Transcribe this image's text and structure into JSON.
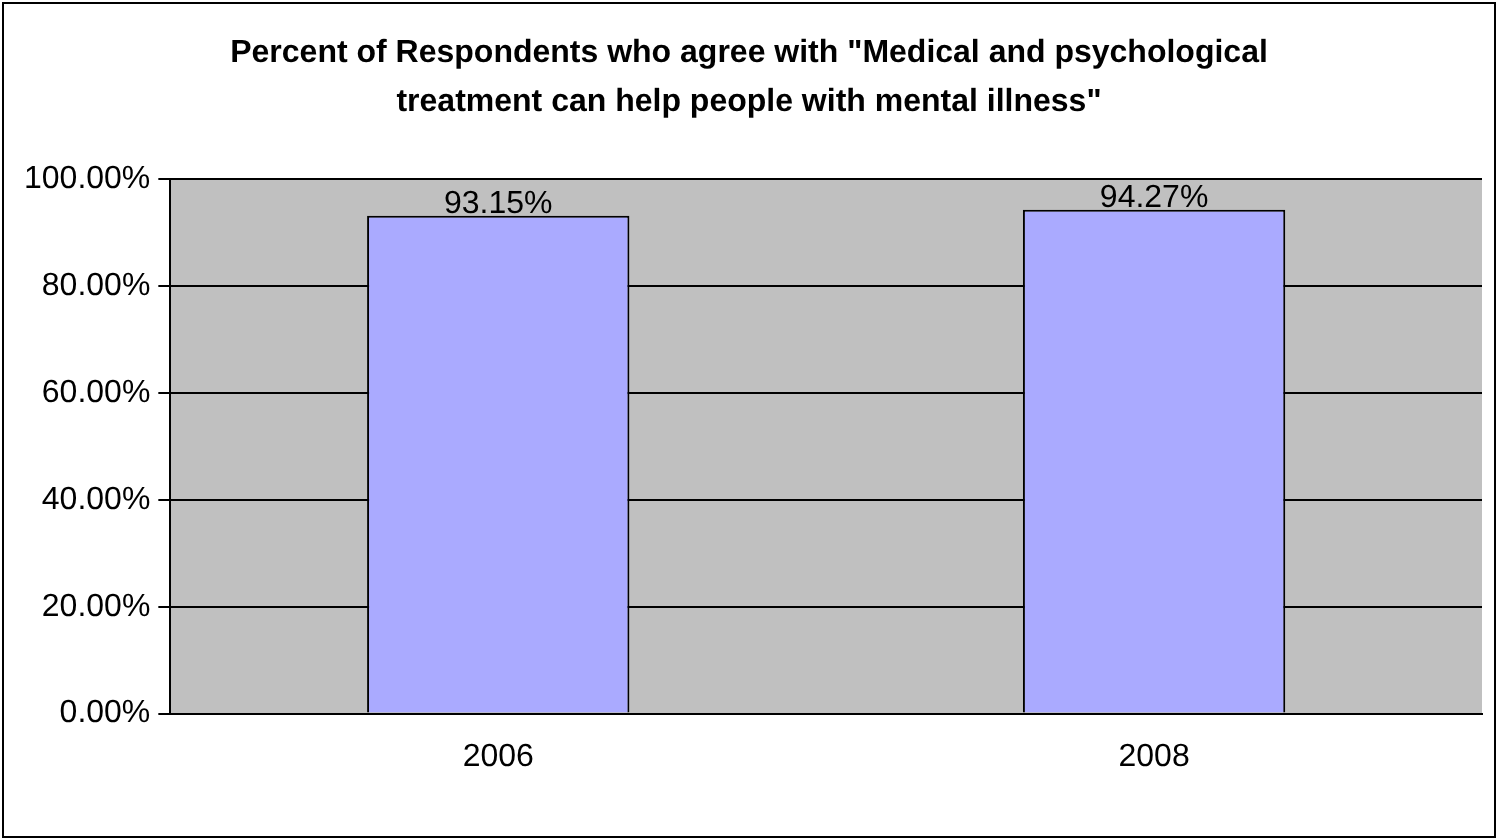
{
  "chart_data": {
    "type": "bar",
    "title": "Percent of Respondents who agree with \"Medical and psychological treatment can help people with mental illness\"",
    "categories": [
      "2006",
      "2008"
    ],
    "values": [
      93.15,
      94.27
    ],
    "value_labels": [
      "93.15%",
      "94.27%"
    ],
    "color": "#aaaaff",
    "ylim": [
      0,
      100
    ],
    "yticks": [
      {
        "value": 0,
        "label": "0.00%"
      },
      {
        "value": 20,
        "label": "20.00%"
      },
      {
        "value": 40,
        "label": "40.00%"
      },
      {
        "value": 60,
        "label": "60.00%"
      },
      {
        "value": 80,
        "label": "80.00%"
      },
      {
        "value": 100,
        "label": "100.00%"
      }
    ],
    "grid": "y"
  }
}
